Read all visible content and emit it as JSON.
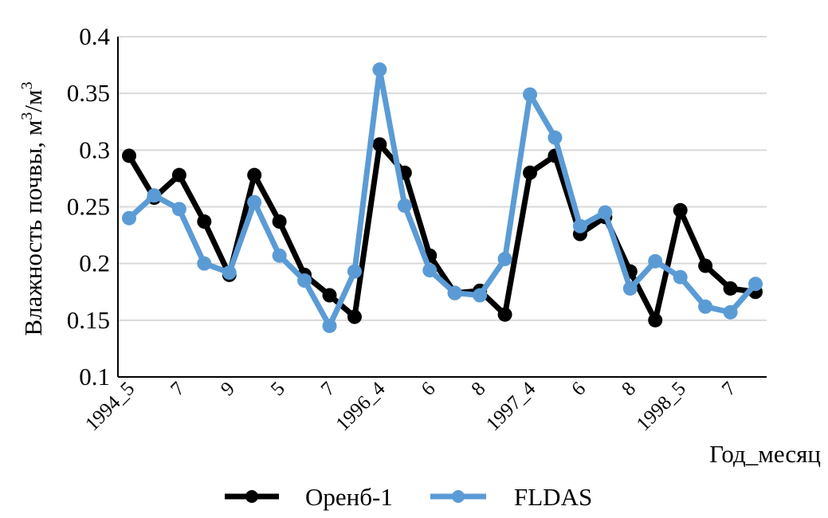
{
  "chart_data": {
    "type": "line",
    "title": "",
    "xlabel": "Год_месяц",
    "ylabel": "Влажность почвы, м³/м³",
    "ylabel_parts": {
      "main": "Влажность почвы, м",
      "sup1": "3",
      "slash": "/м",
      "sup2": "3"
    },
    "ylim": [
      0.1,
      0.4
    ],
    "yticks": [
      0.1,
      0.15,
      0.2,
      0.25,
      0.3,
      0.35,
      0.4
    ],
    "ytick_labels": [
      "0.1",
      "0.15",
      "0.2",
      "0.25",
      "0.3",
      "0.35",
      "0.4"
    ],
    "grid": "horizontal",
    "legend": "bottom",
    "categories": [
      "1994_5",
      "1994_6",
      "1994_7",
      "1994_8",
      "1994_9",
      "1994_10",
      "1995_5",
      "1995_6",
      "1995_7",
      "1995_8",
      "1996_4",
      "1996_5",
      "1996_6",
      "1996_7",
      "1996_8",
      "1996_9",
      "1997_4",
      "1997_5",
      "1997_6",
      "1997_7",
      "1997_8",
      "1997_9",
      "1998_5",
      "1998_6",
      "1998_7",
      "1998_8"
    ],
    "tick_labels": [
      "1994_5",
      "",
      "7",
      "",
      "9",
      "",
      "5",
      "",
      "7",
      "",
      "1996_4",
      "",
      "6",
      "",
      "8",
      "",
      "1997_4",
      "",
      "6",
      "",
      "8",
      "",
      "1998_5",
      "",
      "7",
      ""
    ],
    "series": [
      {
        "name": "Оренб-1",
        "color": "#000000",
        "values": [
          0.295,
          0.258,
          0.278,
          0.237,
          0.19,
          0.278,
          0.237,
          0.19,
          0.172,
          0.153,
          0.305,
          0.28,
          0.207,
          0.174,
          0.176,
          0.155,
          0.28,
          0.295,
          0.226,
          0.241,
          0.193,
          0.15,
          0.247,
          0.198,
          0.178,
          0.175
        ]
      },
      {
        "name": "FLDAS",
        "color": "#5b9bd5",
        "values": [
          0.24,
          0.26,
          0.248,
          0.2,
          0.192,
          0.254,
          0.207,
          0.185,
          0.145,
          0.193,
          0.371,
          0.251,
          0.194,
          0.174,
          0.172,
          0.204,
          0.349,
          0.311,
          0.233,
          0.245,
          0.178,
          0.202,
          0.188,
          0.162,
          0.157,
          0.182
        ]
      }
    ]
  }
}
